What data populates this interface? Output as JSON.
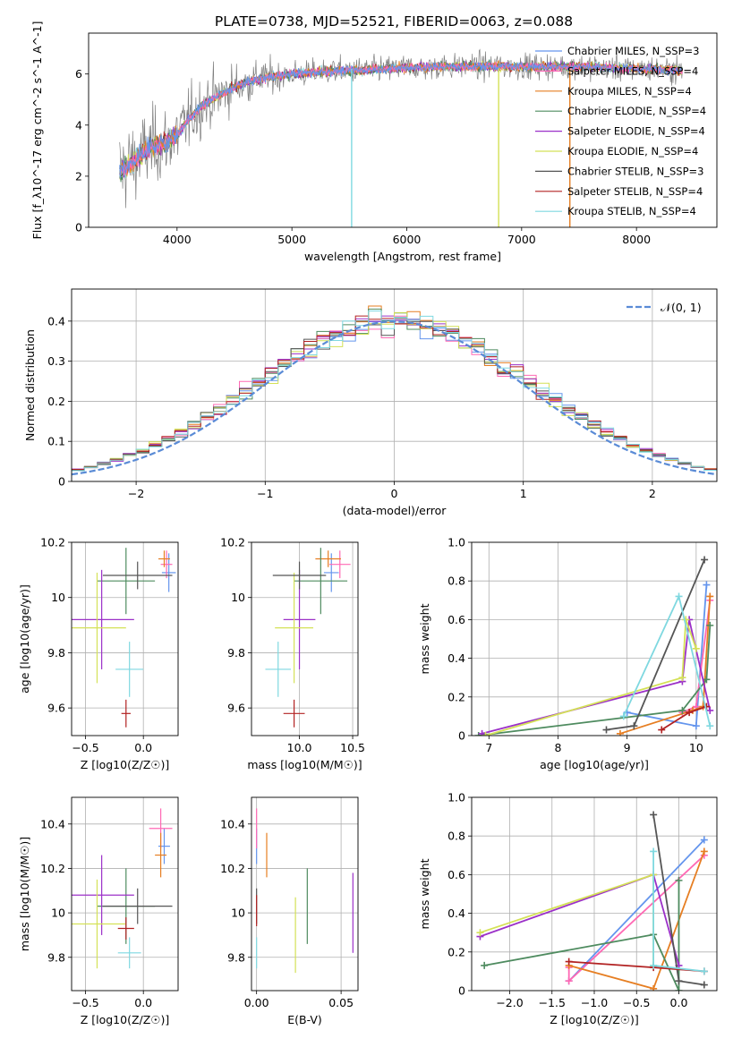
{
  "figure_title": "PLATE=0738, MJD=52521, FIBERID=0063, z=0.088",
  "colors": {
    "chabrier_miles": "#6495ED",
    "salpeter_miles": "#FF69B4",
    "kroupa_miles": "#E67E22",
    "chabrier_elodie": "#4E8B5F",
    "salpeter_elodie": "#9B30C8",
    "kroupa_elodie": "#D4E157",
    "chabrier_stelib": "#555555",
    "salpeter_stelib": "#B22222",
    "kroupa_stelib": "#7FD8E0",
    "normal_curve": "#5A8BD6",
    "grid": "#b0b0b0"
  },
  "chart_data": [
    {
      "id": "spectrum",
      "type": "line",
      "xlabel": "wavelength [Angstrom, rest frame]",
      "ylabel": "Flux [f_λ10^-17 erg cm^-2 s^-1 A^-1]",
      "xlim": [
        3230,
        8700
      ],
      "ylim": [
        0,
        7.6
      ],
      "xticks": [
        4000,
        5000,
        6000,
        7000,
        8000
      ],
      "yticks": [
        0,
        2,
        4,
        6
      ],
      "grid": false,
      "legend_position": "right",
      "legend": [
        {
          "label": "Chabrier MILES, N_SSP=3",
          "color_key": "chabrier_miles"
        },
        {
          "label": "Salpeter MILES, N_SSP=4",
          "color_key": "salpeter_miles"
        },
        {
          "label": "Kroupa MILES, N_SSP=4",
          "color_key": "kroupa_miles"
        },
        {
          "label": "Chabrier ELODIE, N_SSP=4",
          "color_key": "chabrier_elodie"
        },
        {
          "label": "Salpeter ELODIE, N_SSP=4",
          "color_key": "salpeter_elodie"
        },
        {
          "label": "Kroupa ELODIE, N_SSP=4",
          "color_key": "kroupa_elodie"
        },
        {
          "label": "Chabrier STELIB, N_SSP=3",
          "color_key": "chabrier_stelib"
        },
        {
          "label": "Salpeter STELIB, N_SSP=4",
          "color_key": "salpeter_stelib"
        },
        {
          "label": "Kroupa STELIB, N_SSP=4",
          "color_key": "kroupa_stelib"
        }
      ],
      "observed_range": [
        3500,
        8400
      ],
      "continuum_x": [
        3500,
        3600,
        3700,
        3800,
        3900,
        4000,
        4100,
        4200,
        4300,
        4500,
        4700,
        5000,
        5300,
        5600,
        6000,
        6500,
        7000,
        7500,
        8000,
        8400
      ],
      "continuum_y": [
        2.2,
        2.5,
        2.9,
        3.2,
        3.3,
        3.6,
        4.2,
        4.7,
        5.0,
        5.5,
        5.8,
        6.0,
        6.1,
        6.15,
        6.25,
        6.3,
        6.3,
        6.3,
        6.2,
        6.15
      ],
      "observed_noise_scale": [
        2.0,
        0.6
      ],
      "dropouts": [
        {
          "x": 5520,
          "color_key": "kroupa_stelib"
        },
        {
          "x": 6800,
          "color_key": "kroupa_elodie"
        },
        {
          "x": 7420,
          "color_key": "kroupa_miles"
        }
      ]
    },
    {
      "id": "residual_histogram",
      "type": "histogram",
      "xlabel": "(data-model)/error",
      "ylabel": "Normed distribution",
      "xlim": [
        -2.5,
        2.5
      ],
      "ylim": [
        0,
        0.48
      ],
      "xticks": [
        -2,
        -1,
        0,
        1,
        2
      ],
      "yticks": [
        0,
        0.1,
        0.2,
        0.3,
        0.4
      ],
      "grid": true,
      "bin_width": 0.1,
      "legend_position": "top-right",
      "legend": [
        {
          "label": "𝒩(0, 1)",
          "color_key": "normal_curve"
        }
      ]
    },
    {
      "id": "age_vs_Z",
      "type": "errorbar",
      "xlabel": "Z [log10(Z/Z☉)]",
      "ylabel": "age  [log10(age/yr)]",
      "xlim": [
        -0.62,
        0.3
      ],
      "ylim": [
        9.5,
        10.2
      ],
      "xticks": [
        -0.5,
        0.0
      ],
      "xtick_labels": [
        "−0.5",
        "0.0"
      ],
      "yticks": [
        9.6,
        9.8,
        10.0,
        10.2
      ],
      "grid": true,
      "points": [
        {
          "color_key": "chabrier_miles",
          "x": 0.22,
          "xerr": 0.06,
          "y": 10.09,
          "yerr": 0.07
        },
        {
          "color_key": "salpeter_miles",
          "x": 0.2,
          "xerr": 0.05,
          "y": 10.12,
          "yerr": 0.05
        },
        {
          "color_key": "kroupa_miles",
          "x": 0.18,
          "xerr": 0.05,
          "y": 10.14,
          "yerr": 0.03
        },
        {
          "color_key": "chabrier_elodie",
          "x": -0.15,
          "xerr": 0.25,
          "y": 10.06,
          "yerr": 0.12
        },
        {
          "color_key": "salpeter_elodie",
          "x": -0.36,
          "xerr": 0.28,
          "y": 9.92,
          "yerr": 0.18
        },
        {
          "color_key": "kroupa_elodie",
          "x": -0.4,
          "xerr": 0.25,
          "y": 9.89,
          "yerr": 0.2
        },
        {
          "color_key": "chabrier_stelib",
          "x": -0.05,
          "xerr": 0.3,
          "y": 10.08,
          "yerr": 0.05
        },
        {
          "color_key": "salpeter_stelib",
          "x": -0.15,
          "xerr": 0.04,
          "y": 9.58,
          "yerr": 0.05
        },
        {
          "color_key": "kroupa_stelib",
          "x": -0.12,
          "xerr": 0.12,
          "y": 9.74,
          "yerr": 0.1
        }
      ]
    },
    {
      "id": "age_vs_mass",
      "type": "errorbar",
      "xlabel": "mass [log10(M/M☉)]",
      "ylabel": "",
      "xlim": [
        9.55,
        10.55
      ],
      "ylim": [
        9.5,
        10.2
      ],
      "xticks": [
        10.0,
        10.5
      ],
      "xtick_labels": [
        "10.0",
        "10.5"
      ],
      "yticks": [
        9.6,
        9.8,
        10.0,
        10.2
      ],
      "grid": true,
      "points": [
        {
          "color_key": "chabrier_miles",
          "x": 10.3,
          "xerr": 0.07,
          "y": 10.09,
          "yerr": 0.07
        },
        {
          "color_key": "salpeter_miles",
          "x": 10.38,
          "xerr": 0.1,
          "y": 10.12,
          "yerr": 0.05
        },
        {
          "color_key": "kroupa_miles",
          "x": 10.27,
          "xerr": 0.12,
          "y": 10.14,
          "yerr": 0.03
        },
        {
          "color_key": "chabrier_elodie",
          "x": 10.2,
          "xerr": 0.25,
          "y": 10.06,
          "yerr": 0.12
        },
        {
          "color_key": "salpeter_elodie",
          "x": 10.0,
          "xerr": 0.15,
          "y": 9.92,
          "yerr": 0.18
        },
        {
          "color_key": "kroupa_elodie",
          "x": 9.95,
          "xerr": 0.18,
          "y": 9.89,
          "yerr": 0.2
        },
        {
          "color_key": "chabrier_stelib",
          "x": 10.0,
          "xerr": 0.25,
          "y": 10.08,
          "yerr": 0.05
        },
        {
          "color_key": "salpeter_stelib",
          "x": 9.95,
          "xerr": 0.1,
          "y": 9.58,
          "yerr": 0.05
        },
        {
          "color_key": "kroupa_stelib",
          "x": 9.8,
          "xerr": 0.12,
          "y": 9.74,
          "yerr": 0.1
        }
      ]
    },
    {
      "id": "mass_weight_vs_age",
      "type": "line",
      "xlabel": "age  [log10(age/yr)]",
      "ylabel": "mass weight",
      "xlim": [
        6.75,
        10.3
      ],
      "ylim": [
        0,
        1
      ],
      "xticks": [
        7,
        8,
        9,
        10
      ],
      "yticks": [
        0,
        0.2,
        0.4,
        0.6,
        0.8,
        1.0
      ],
      "grid": true,
      "series": [
        {
          "color_key": "chabrier_miles",
          "x": [
            9.0,
            10.0,
            10.15
          ],
          "y": [
            0.12,
            0.05,
            0.78
          ]
        },
        {
          "color_key": "salpeter_miles",
          "x": [
            9.8,
            10.0,
            10.2
          ],
          "y": [
            0.12,
            0.15,
            0.7
          ]
        },
        {
          "color_key": "kroupa_miles",
          "x": [
            8.9,
            9.95,
            10.1,
            10.2
          ],
          "y": [
            0.01,
            0.13,
            0.15,
            0.72
          ]
        },
        {
          "color_key": "chabrier_elodie",
          "x": [
            6.85,
            9.8,
            10.15,
            10.2
          ],
          "y": [
            0.0,
            0.13,
            0.29,
            0.57
          ]
        },
        {
          "color_key": "salpeter_elodie",
          "x": [
            6.9,
            9.8,
            9.9,
            10.2
          ],
          "y": [
            0.01,
            0.28,
            0.6,
            0.13
          ]
        },
        {
          "color_key": "kroupa_elodie",
          "x": [
            6.95,
            9.8,
            9.85,
            10.0
          ],
          "y": [
            0.0,
            0.3,
            0.6,
            0.45
          ]
        },
        {
          "color_key": "chabrier_stelib",
          "x": [
            8.7,
            9.1,
            10.12
          ],
          "y": [
            0.03,
            0.05,
            0.91
          ]
        },
        {
          "color_key": "salpeter_stelib",
          "x": [
            9.5,
            9.9,
            10.15
          ],
          "y": [
            0.03,
            0.12,
            0.15
          ]
        },
        {
          "color_key": "kroupa_stelib",
          "x": [
            8.95,
            9.75,
            10.2
          ],
          "y": [
            0.1,
            0.72,
            0.05
          ]
        }
      ]
    },
    {
      "id": "mass_vs_Z",
      "type": "errorbar",
      "xlabel": "Z [log10(Z/Z☉)]",
      "ylabel": "mass [log10(M/M☉)]",
      "xlim": [
        -0.62,
        0.3
      ],
      "ylim": [
        9.65,
        10.52
      ],
      "xticks": [
        -0.5,
        0.0
      ],
      "xtick_labels": [
        "−0.5",
        "0.0"
      ],
      "yticks": [
        9.8,
        10.0,
        10.2,
        10.4
      ],
      "grid": true,
      "points": [
        {
          "color_key": "chabrier_miles",
          "x": 0.18,
          "xerr": 0.05,
          "y": 10.3,
          "yerr": 0.08
        },
        {
          "color_key": "salpeter_miles",
          "x": 0.15,
          "xerr": 0.1,
          "y": 10.38,
          "yerr": 0.09
        },
        {
          "color_key": "kroupa_miles",
          "x": 0.15,
          "xerr": 0.05,
          "y": 10.26,
          "yerr": 0.1
        },
        {
          "color_key": "chabrier_elodie",
          "x": -0.15,
          "xerr": 0.25,
          "y": 10.03,
          "yerr": 0.17
        },
        {
          "color_key": "salpeter_elodie",
          "x": -0.36,
          "xerr": 0.28,
          "y": 10.08,
          "yerr": 0.18
        },
        {
          "color_key": "kroupa_elodie",
          "x": -0.4,
          "xerr": 0.25,
          "y": 9.95,
          "yerr": 0.2
        },
        {
          "color_key": "chabrier_stelib",
          "x": -0.05,
          "xerr": 0.3,
          "y": 10.03,
          "yerr": 0.08
        },
        {
          "color_key": "salpeter_stelib",
          "x": -0.15,
          "xerr": 0.07,
          "y": 9.93,
          "yerr": 0.05
        },
        {
          "color_key": "kroupa_stelib",
          "x": -0.12,
          "xerr": 0.1,
          "y": 9.82,
          "yerr": 0.07
        }
      ]
    },
    {
      "id": "mass_vs_ebv",
      "type": "errorbar",
      "xlabel": "E(B-V)",
      "ylabel": "",
      "xlim": [
        -0.003,
        0.06
      ],
      "ylim": [
        9.65,
        10.52
      ],
      "xticks": [
        0.0,
        0.05
      ],
      "xtick_labels": [
        "0.00",
        "0.05"
      ],
      "yticks": [
        9.8,
        10.0,
        10.2,
        10.4
      ],
      "grid": true,
      "points": [
        {
          "color_key": "chabrier_miles",
          "x": 0.0,
          "xerr": 0.0,
          "y": 10.3,
          "yerr": 0.08
        },
        {
          "color_key": "salpeter_miles",
          "x": 0.0,
          "xerr": 0.0,
          "y": 10.38,
          "yerr": 0.09
        },
        {
          "color_key": "kroupa_miles",
          "x": 0.006,
          "xerr": 0.0,
          "y": 10.26,
          "yerr": 0.1
        },
        {
          "color_key": "chabrier_elodie",
          "x": 0.03,
          "xerr": 0.0,
          "y": 10.03,
          "yerr": 0.17
        },
        {
          "color_key": "salpeter_elodie",
          "x": 0.057,
          "xerr": 0.0,
          "y": 10.0,
          "yerr": 0.18
        },
        {
          "color_key": "kroupa_elodie",
          "x": 0.023,
          "xerr": 0.0,
          "y": 9.9,
          "yerr": 0.17
        },
        {
          "color_key": "chabrier_stelib",
          "x": 0.0,
          "xerr": 0.0,
          "y": 10.03,
          "yerr": 0.08
        },
        {
          "color_key": "salpeter_stelib",
          "x": 0.0,
          "xerr": 0.0,
          "y": 10.01,
          "yerr": 0.07
        },
        {
          "color_key": "kroupa_stelib",
          "x": 0.0,
          "xerr": 0.0,
          "y": 9.82,
          "yerr": 0.07
        }
      ]
    },
    {
      "id": "mass_weight_vs_Z",
      "type": "line",
      "xlabel": "Z [log10(Z/Z☉)]",
      "ylabel": "mass weight",
      "xlim": [
        -2.45,
        0.45
      ],
      "ylim": [
        0,
        1
      ],
      "xticks": [
        -2.0,
        -1.5,
        -1.0,
        -0.5,
        0.0
      ],
      "xtick_labels": [
        "−2.0",
        "−1.5",
        "−1.0",
        "−0.5",
        "0.0"
      ],
      "yticks": [
        0,
        0.2,
        0.4,
        0.6,
        0.8,
        1.0
      ],
      "grid": true,
      "series": [
        {
          "color_key": "chabrier_miles",
          "x": [
            -1.3,
            0.3
          ],
          "y": [
            0.05,
            0.78
          ]
        },
        {
          "color_key": "salpeter_miles",
          "x": [
            -1.3,
            -1.3,
            0.3
          ],
          "y": [
            0.12,
            0.05,
            0.7
          ]
        },
        {
          "color_key": "kroupa_miles",
          "x": [
            -1.3,
            -0.3,
            0.3
          ],
          "y": [
            0.13,
            0.01,
            0.72
          ]
        },
        {
          "color_key": "chabrier_elodie",
          "x": [
            -2.3,
            -0.3,
            0.0,
            0.0
          ],
          "y": [
            0.13,
            0.29,
            0.0,
            0.57
          ]
        },
        {
          "color_key": "salpeter_elodie",
          "x": [
            -2.35,
            -0.3,
            0.0
          ],
          "y": [
            0.28,
            0.6,
            0.13
          ]
        },
        {
          "color_key": "kroupa_elodie",
          "x": [
            -2.35,
            -0.3,
            -0.3
          ],
          "y": [
            0.3,
            0.6,
            0.13
          ]
        },
        {
          "color_key": "chabrier_stelib",
          "x": [
            -0.3,
            0.0,
            0.3
          ],
          "y": [
            0.91,
            0.05,
            0.03
          ]
        },
        {
          "color_key": "salpeter_stelib",
          "x": [
            -1.3,
            -0.3,
            0.3
          ],
          "y": [
            0.15,
            0.12,
            0.1
          ]
        },
        {
          "color_key": "kroupa_stelib",
          "x": [
            -0.3,
            -0.3,
            0.3
          ],
          "y": [
            0.72,
            0.13,
            0.1
          ]
        }
      ]
    }
  ]
}
